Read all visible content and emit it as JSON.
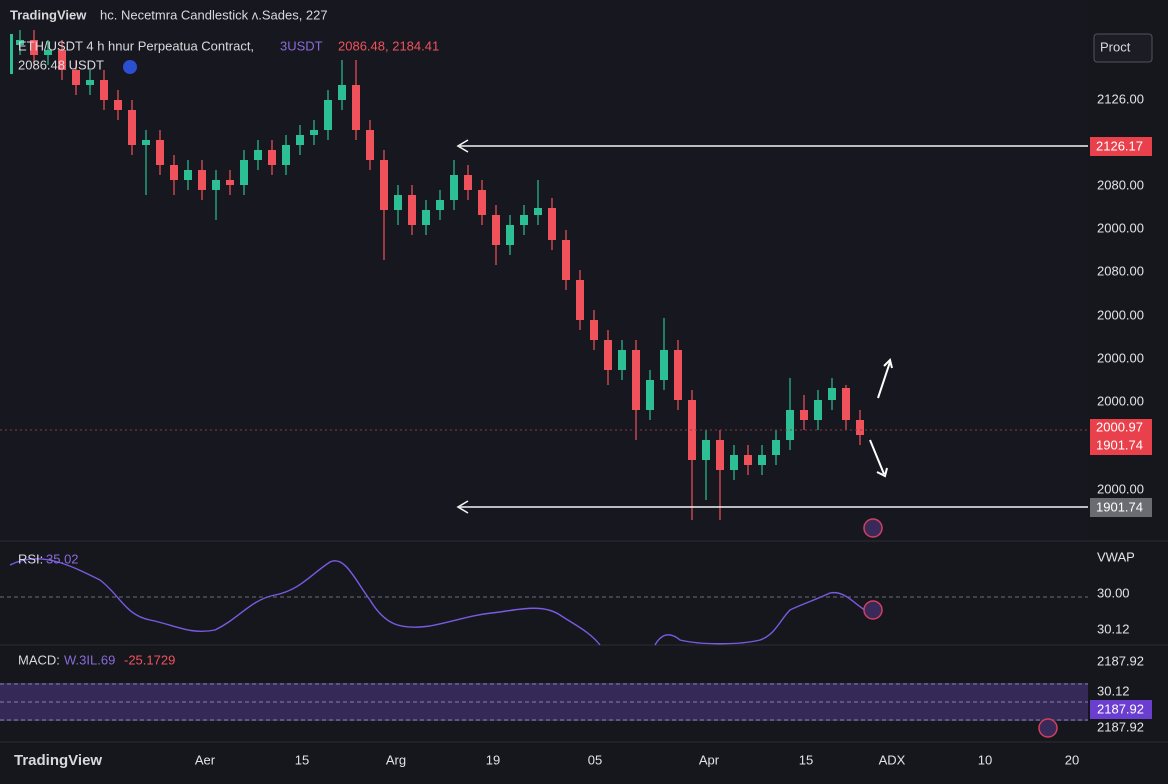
{
  "header": {
    "brand": "TradingView",
    "title": "hc. Necetmra Candlestick ʌ.Sades, 227"
  },
  "symbol": {
    "name": "ETH/USDT 4 h hnur Perpeatua Contract,",
    "unit": "3USDT",
    "values": "2086.48, 2184.41",
    "price": "2086.48 USDT"
  },
  "button": "Proct",
  "price_axis": [
    "2126.00",
    "2080.00",
    "2000.00",
    "2080.00",
    "2000.00",
    "2000.00",
    "2000.00",
    "2000.00"
  ],
  "price_tags": [
    "2126.17",
    "2000.97",
    "1901.74",
    "1901.74"
  ],
  "rsi": {
    "label": "RSI:",
    "value": "35.02",
    "axis": [
      "VWAP",
      "30.00",
      "30.12"
    ]
  },
  "macd": {
    "label": "MACD:",
    "value1": "W.3IL.69",
    "value2": "-25.1729",
    "axis": [
      "2187.92",
      "30.12",
      "2187.92",
      "2187.92"
    ]
  },
  "time_axis": [
    "Aer",
    "15",
    "Arg",
    "19",
    "05",
    "Apr",
    "15",
    "ADX",
    "10",
    "20"
  ],
  "footer": {
    "logo": "TradingView"
  }
}
